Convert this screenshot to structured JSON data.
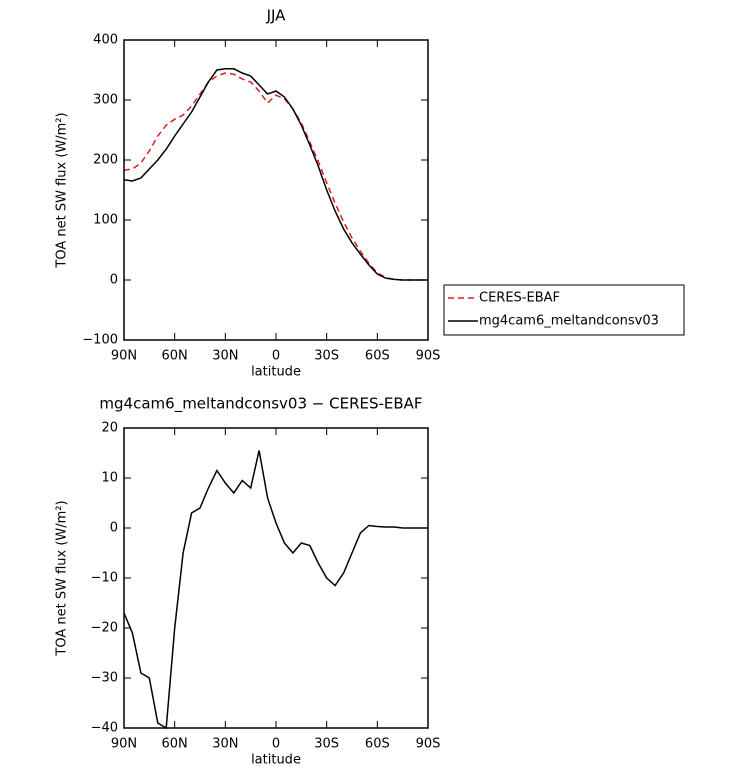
{
  "chart_data": [
    {
      "type": "line",
      "title": "JJA",
      "xlabel": "latitude",
      "ylabel": "TOA net SW flux (W/m²)",
      "x": [
        90,
        85,
        80,
        75,
        70,
        65,
        60,
        55,
        50,
        45,
        40,
        35,
        30,
        25,
        20,
        15,
        10,
        5,
        0,
        -5,
        -10,
        -15,
        -20,
        -25,
        -30,
        -35,
        -40,
        -45,
        -50,
        -55,
        -60,
        -65,
        -70,
        -75,
        -80,
        -85,
        -90
      ],
      "xlim": [
        90,
        -90
      ],
      "xticks": [
        {
          "value": 90,
          "label": "90N"
        },
        {
          "value": 60,
          "label": "60N"
        },
        {
          "value": 30,
          "label": "30N"
        },
        0,
        {
          "value": -30,
          "label": "30S"
        },
        {
          "value": -60,
          "label": "60S"
        },
        {
          "value": -90,
          "label": "90S"
        }
      ],
      "ylim": [
        -100,
        400
      ],
      "yticks": [
        {
          "value": -100,
          "label": "−100"
        },
        0,
        100,
        200,
        300,
        400
      ],
      "series": [
        {
          "name": "CERES-EBAF",
          "color": "#e41a1c",
          "dashed": true,
          "values": [
            183,
            185,
            195,
            215,
            240,
            258,
            268,
            275,
            290,
            310,
            330,
            340,
            345,
            343,
            335,
            330,
            315,
            295,
            308,
            302,
            285,
            262,
            230,
            198,
            162,
            128,
            97,
            70,
            48,
            28,
            12,
            4,
            1,
            0,
            0,
            0,
            0
          ]
        },
        {
          "name": "mg4cam6_meltandconsv03",
          "color": "#000000",
          "dashed": false,
          "values": [
            167,
            165,
            170,
            185,
            200,
            218,
            240,
            260,
            280,
            305,
            330,
            350,
            352,
            352,
            345,
            340,
            325,
            310,
            315,
            305,
            285,
            258,
            225,
            190,
            150,
            115,
            85,
            62,
            43,
            25,
            10,
            3,
            1,
            0,
            0,
            0,
            0
          ]
        }
      ]
    },
    {
      "type": "line",
      "title": "mg4cam6_meltandconsv03 − CERES-EBAF",
      "xlabel": "latitude",
      "ylabel": "TOA net SW flux (W/m²)",
      "x": [
        90,
        85,
        80,
        75,
        70,
        65,
        60,
        55,
        50,
        45,
        40,
        35,
        30,
        25,
        20,
        15,
        10,
        5,
        0,
        -5,
        -10,
        -15,
        -20,
        -25,
        -30,
        -35,
        -40,
        -45,
        -50,
        -55,
        -60,
        -65,
        -70,
        -75,
        -80,
        -85,
        -90
      ],
      "xlim": [
        90,
        -90
      ],
      "xticks": [
        {
          "value": 90,
          "label": "90N"
        },
        {
          "value": 60,
          "label": "60N"
        },
        {
          "value": 30,
          "label": "30N"
        },
        0,
        {
          "value": -30,
          "label": "30S"
        },
        {
          "value": -60,
          "label": "60S"
        },
        {
          "value": -90,
          "label": "90S"
        }
      ],
      "ylim": [
        -40,
        20
      ],
      "yticks": [
        {
          "value": -40,
          "label": "−40"
        },
        {
          "value": -30,
          "label": "−30"
        },
        {
          "value": -20,
          "label": "−20"
        },
        {
          "value": -10,
          "label": "−10"
        },
        0,
        10,
        20
      ],
      "series": [
        {
          "color": "#000000",
          "dashed": false,
          "values": [
            -17,
            -21,
            -29,
            -30,
            -39,
            -40,
            -20,
            -5,
            3,
            4,
            8,
            11.5,
            9,
            7,
            9.5,
            8,
            15.5,
            6,
            1,
            -3,
            -5,
            -3,
            -3.5,
            -7,
            -10,
            -11.5,
            -9,
            -5,
            -1,
            0.5,
            0.3,
            0.2,
            0.2,
            0,
            0,
            0,
            0
          ]
        }
      ]
    }
  ]
}
